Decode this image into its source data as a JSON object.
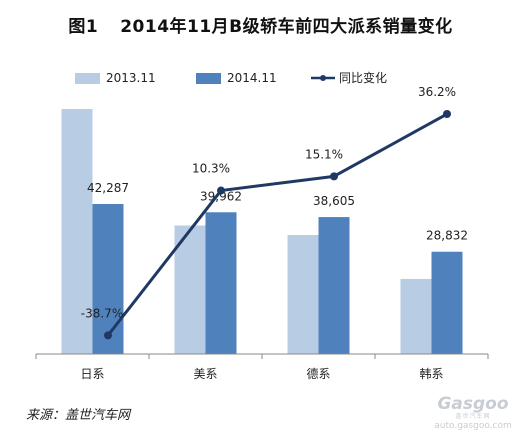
{
  "chart_data": {
    "type": "bar",
    "title_prefix": "图1",
    "title": "2014年11月B级轿车前四大派系销量变化",
    "categories": [
      "日系",
      "美系",
      "德系",
      "韩系"
    ],
    "series": [
      {
        "name": "2013.11",
        "kind": "bar",
        "color": "#b8cce4",
        "values": [
          69089,
          36230,
          33540,
          21169
        ],
        "labels": [
          "",
          "",
          "",
          ""
        ]
      },
      {
        "name": "2014.11",
        "kind": "bar",
        "color": "#4f81bd",
        "values": [
          42287,
          39962,
          38605,
          28832
        ],
        "labels": [
          "42,287",
          "39,962",
          "38,605",
          "28,832"
        ]
      },
      {
        "name": "同比变化",
        "kind": "line",
        "color": "#1f3864",
        "values": [
          -38.7,
          10.3,
          15.1,
          36.2
        ],
        "labels": [
          "-38.7%",
          "10.3%",
          "15.1%",
          "36.2%"
        ]
      }
    ],
    "bar_axis": [
      0,
      75000
    ],
    "line_axis": [
      -45,
      45
    ],
    "grid": false,
    "legend_position": "top"
  },
  "footer": {
    "source": "来源：盖世汽车网"
  },
  "watermark": {
    "brand": "Gasgoo",
    "sub": "盖世汽车网",
    "url": "auto.gasgoo.com"
  }
}
